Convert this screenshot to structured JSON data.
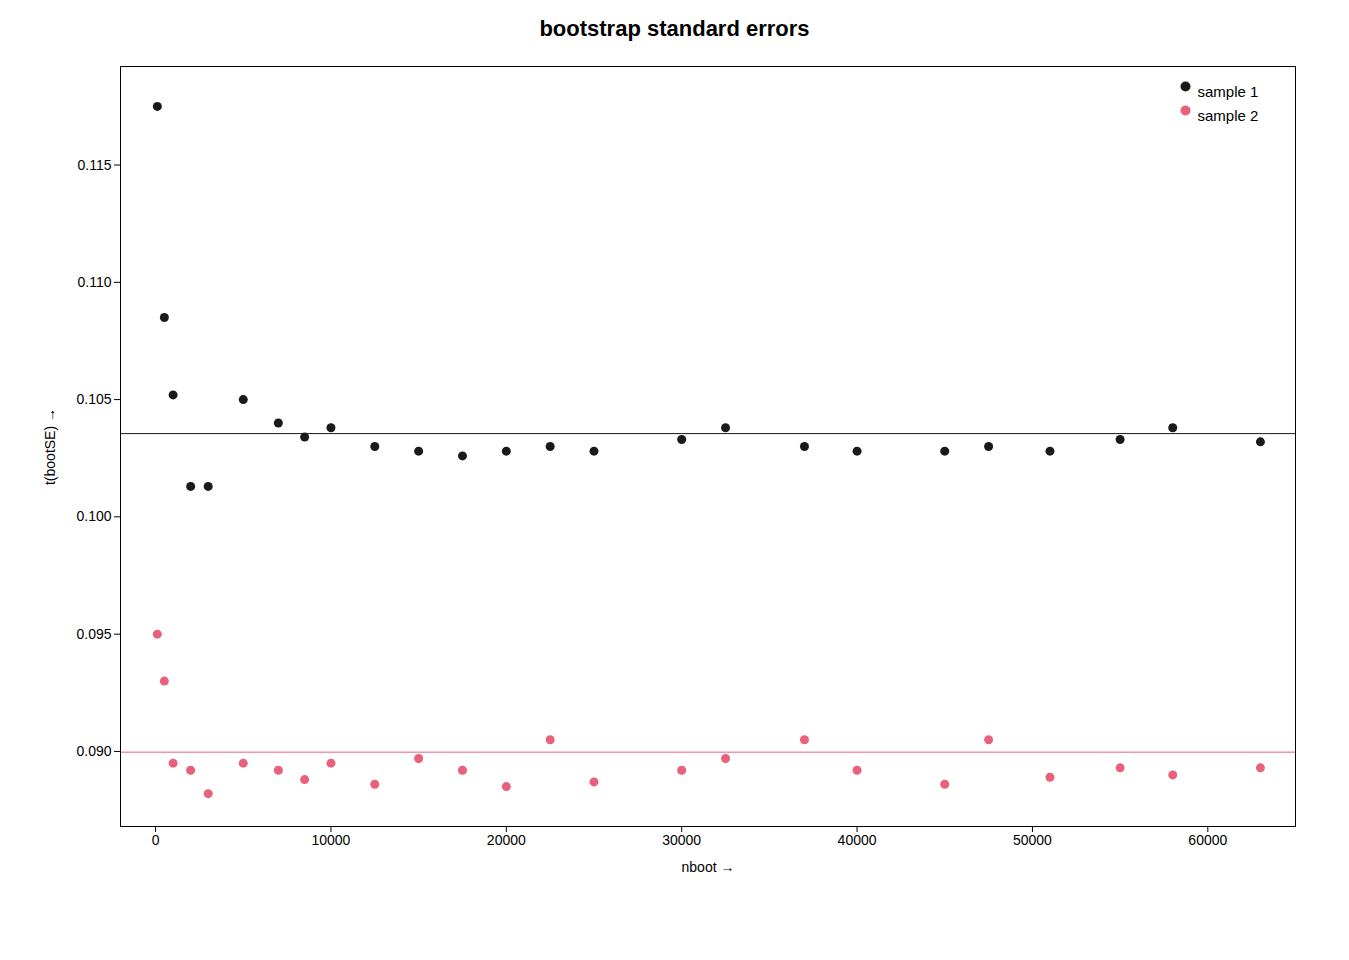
{
  "chart_data": {
    "type": "scatter",
    "title": "bootstrap standard errors",
    "xlabel": "nboot",
    "ylabel": "t(bootSE)",
    "xlim": [
      -2000,
      65000
    ],
    "ylim": [
      0.0868,
      0.1192
    ],
    "xticks": [
      0,
      10000,
      20000,
      30000,
      40000,
      50000,
      60000
    ],
    "yticks": [
      {
        "value": 0.09,
        "label": "0.090"
      },
      0.095,
      {
        "value": 0.1,
        "label": "0.100"
      },
      0.105,
      {
        "value": 0.11,
        "label": "0.110"
      },
      0.115
    ],
    "grid": false,
    "legend": "upper right",
    "marker": "circle",
    "x": [
      100,
      500,
      1000,
      2000,
      3000,
      5000,
      7000,
      8500,
      10000,
      12500,
      15000,
      17500,
      20000,
      22500,
      25000,
      30000,
      32500,
      37000,
      40000,
      45000,
      47500,
      51000,
      55000,
      58000,
      63000
    ],
    "series": [
      {
        "name": "sample 1",
        "color": "#1a1a1a",
        "hline": 0.10355,
        "values": [
          0.1175,
          0.1085,
          0.1052,
          0.1013,
          0.1013,
          0.105,
          0.104,
          0.1034,
          0.1038,
          0.103,
          0.1028,
          0.1026,
          0.1028,
          0.103,
          0.1028,
          0.1033,
          0.1038,
          0.103,
          0.1028,
          0.1028,
          0.103,
          0.1028,
          0.1033,
          0.1038,
          0.1032
        ]
      },
      {
        "name": "sample 2",
        "color": "#e8607a",
        "hline": 0.08997,
        "values": [
          0.095,
          0.093,
          0.0895,
          0.0892,
          0.0882,
          0.0895,
          0.0892,
          0.0888,
          0.0895,
          0.0886,
          0.0897,
          0.0892,
          0.0885,
          0.0905,
          0.0887,
          0.0892,
          0.0897,
          0.0905,
          0.0892,
          0.0886,
          0.0905,
          0.0889,
          0.0893,
          0.089,
          0.0893
        ]
      }
    ]
  }
}
